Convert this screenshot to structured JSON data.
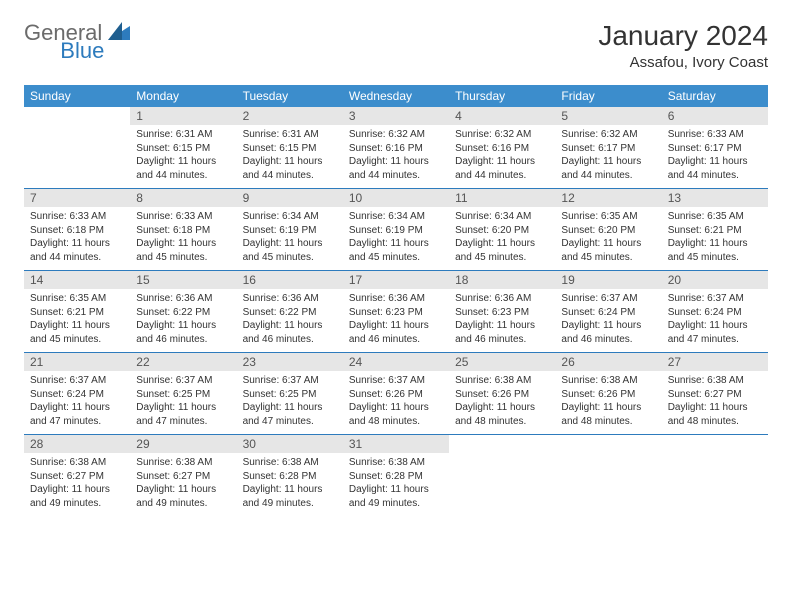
{
  "logo": {
    "general": "General",
    "blue": "Blue",
    "mark_color": "#2d7bbd",
    "general_color": "#6b6b6b"
  },
  "title": "January 2024",
  "subtitle": "Assafou, Ivory Coast",
  "colors": {
    "header_bg": "#3c8dcc",
    "header_text": "#ffffff",
    "daynum_bg": "#e6e6e6",
    "daynum_text": "#555555",
    "body_text": "#333333",
    "row_border": "#2d7bbd",
    "page_bg": "#ffffff"
  },
  "fontsize": {
    "title": 28,
    "subtitle": 15,
    "dayheader": 12,
    "daynum": 12,
    "body": 10
  },
  "day_headers": [
    "Sunday",
    "Monday",
    "Tuesday",
    "Wednesday",
    "Thursday",
    "Friday",
    "Saturday"
  ],
  "weeks": [
    [
      {
        "n": "",
        "sr": "",
        "ss": "",
        "dl": ""
      },
      {
        "n": "1",
        "sr": "Sunrise: 6:31 AM",
        "ss": "Sunset: 6:15 PM",
        "dl": "Daylight: 11 hours and 44 minutes."
      },
      {
        "n": "2",
        "sr": "Sunrise: 6:31 AM",
        "ss": "Sunset: 6:15 PM",
        "dl": "Daylight: 11 hours and 44 minutes."
      },
      {
        "n": "3",
        "sr": "Sunrise: 6:32 AM",
        "ss": "Sunset: 6:16 PM",
        "dl": "Daylight: 11 hours and 44 minutes."
      },
      {
        "n": "4",
        "sr": "Sunrise: 6:32 AM",
        "ss": "Sunset: 6:16 PM",
        "dl": "Daylight: 11 hours and 44 minutes."
      },
      {
        "n": "5",
        "sr": "Sunrise: 6:32 AM",
        "ss": "Sunset: 6:17 PM",
        "dl": "Daylight: 11 hours and 44 minutes."
      },
      {
        "n": "6",
        "sr": "Sunrise: 6:33 AM",
        "ss": "Sunset: 6:17 PM",
        "dl": "Daylight: 11 hours and 44 minutes."
      }
    ],
    [
      {
        "n": "7",
        "sr": "Sunrise: 6:33 AM",
        "ss": "Sunset: 6:18 PM",
        "dl": "Daylight: 11 hours and 44 minutes."
      },
      {
        "n": "8",
        "sr": "Sunrise: 6:33 AM",
        "ss": "Sunset: 6:18 PM",
        "dl": "Daylight: 11 hours and 45 minutes."
      },
      {
        "n": "9",
        "sr": "Sunrise: 6:34 AM",
        "ss": "Sunset: 6:19 PM",
        "dl": "Daylight: 11 hours and 45 minutes."
      },
      {
        "n": "10",
        "sr": "Sunrise: 6:34 AM",
        "ss": "Sunset: 6:19 PM",
        "dl": "Daylight: 11 hours and 45 minutes."
      },
      {
        "n": "11",
        "sr": "Sunrise: 6:34 AM",
        "ss": "Sunset: 6:20 PM",
        "dl": "Daylight: 11 hours and 45 minutes."
      },
      {
        "n": "12",
        "sr": "Sunrise: 6:35 AM",
        "ss": "Sunset: 6:20 PM",
        "dl": "Daylight: 11 hours and 45 minutes."
      },
      {
        "n": "13",
        "sr": "Sunrise: 6:35 AM",
        "ss": "Sunset: 6:21 PM",
        "dl": "Daylight: 11 hours and 45 minutes."
      }
    ],
    [
      {
        "n": "14",
        "sr": "Sunrise: 6:35 AM",
        "ss": "Sunset: 6:21 PM",
        "dl": "Daylight: 11 hours and 45 minutes."
      },
      {
        "n": "15",
        "sr": "Sunrise: 6:36 AM",
        "ss": "Sunset: 6:22 PM",
        "dl": "Daylight: 11 hours and 46 minutes."
      },
      {
        "n": "16",
        "sr": "Sunrise: 6:36 AM",
        "ss": "Sunset: 6:22 PM",
        "dl": "Daylight: 11 hours and 46 minutes."
      },
      {
        "n": "17",
        "sr": "Sunrise: 6:36 AM",
        "ss": "Sunset: 6:23 PM",
        "dl": "Daylight: 11 hours and 46 minutes."
      },
      {
        "n": "18",
        "sr": "Sunrise: 6:36 AM",
        "ss": "Sunset: 6:23 PM",
        "dl": "Daylight: 11 hours and 46 minutes."
      },
      {
        "n": "19",
        "sr": "Sunrise: 6:37 AM",
        "ss": "Sunset: 6:24 PM",
        "dl": "Daylight: 11 hours and 46 minutes."
      },
      {
        "n": "20",
        "sr": "Sunrise: 6:37 AM",
        "ss": "Sunset: 6:24 PM",
        "dl": "Daylight: 11 hours and 47 minutes."
      }
    ],
    [
      {
        "n": "21",
        "sr": "Sunrise: 6:37 AM",
        "ss": "Sunset: 6:24 PM",
        "dl": "Daylight: 11 hours and 47 minutes."
      },
      {
        "n": "22",
        "sr": "Sunrise: 6:37 AM",
        "ss": "Sunset: 6:25 PM",
        "dl": "Daylight: 11 hours and 47 minutes."
      },
      {
        "n": "23",
        "sr": "Sunrise: 6:37 AM",
        "ss": "Sunset: 6:25 PM",
        "dl": "Daylight: 11 hours and 47 minutes."
      },
      {
        "n": "24",
        "sr": "Sunrise: 6:37 AM",
        "ss": "Sunset: 6:26 PM",
        "dl": "Daylight: 11 hours and 48 minutes."
      },
      {
        "n": "25",
        "sr": "Sunrise: 6:38 AM",
        "ss": "Sunset: 6:26 PM",
        "dl": "Daylight: 11 hours and 48 minutes."
      },
      {
        "n": "26",
        "sr": "Sunrise: 6:38 AM",
        "ss": "Sunset: 6:26 PM",
        "dl": "Daylight: 11 hours and 48 minutes."
      },
      {
        "n": "27",
        "sr": "Sunrise: 6:38 AM",
        "ss": "Sunset: 6:27 PM",
        "dl": "Daylight: 11 hours and 48 minutes."
      }
    ],
    [
      {
        "n": "28",
        "sr": "Sunrise: 6:38 AM",
        "ss": "Sunset: 6:27 PM",
        "dl": "Daylight: 11 hours and 49 minutes."
      },
      {
        "n": "29",
        "sr": "Sunrise: 6:38 AM",
        "ss": "Sunset: 6:27 PM",
        "dl": "Daylight: 11 hours and 49 minutes."
      },
      {
        "n": "30",
        "sr": "Sunrise: 6:38 AM",
        "ss": "Sunset: 6:28 PM",
        "dl": "Daylight: 11 hours and 49 minutes."
      },
      {
        "n": "31",
        "sr": "Sunrise: 6:38 AM",
        "ss": "Sunset: 6:28 PM",
        "dl": "Daylight: 11 hours and 49 minutes."
      },
      {
        "n": "",
        "sr": "",
        "ss": "",
        "dl": ""
      },
      {
        "n": "",
        "sr": "",
        "ss": "",
        "dl": ""
      },
      {
        "n": "",
        "sr": "",
        "ss": "",
        "dl": ""
      }
    ]
  ]
}
